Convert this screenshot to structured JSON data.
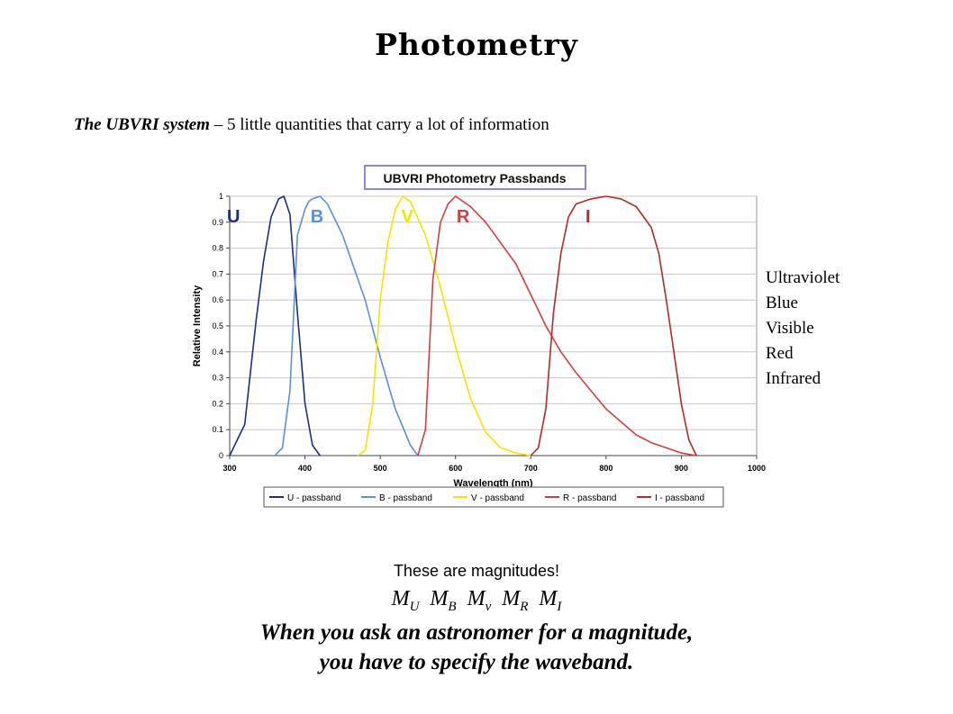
{
  "slide": {
    "title": "Photometry",
    "subtitle_bold": "The UBVRI system",
    "subtitle_rest": " – 5 little quantities that carry a lot of information",
    "bands": [
      "Ultraviolet",
      "Blue",
      "Visible",
      "Red",
      "Infrared"
    ],
    "note": "These are magnitudes!",
    "magnitudes": [
      {
        "base": "M",
        "sub": "U"
      },
      {
        "base": "M",
        "sub": "B"
      },
      {
        "base": "M",
        "sub": "v"
      },
      {
        "base": "M",
        "sub": "R"
      },
      {
        "base": "M",
        "sub": "I"
      }
    ],
    "conclusion_line1": "When you ask an astronomer for a magnitude,",
    "conclusion_line2": "you have to specify the waveband."
  },
  "chart_data": {
    "type": "line",
    "title": "UBVRI Photometry Passbands",
    "xlabel": "Wavelength (nm)",
    "ylabel": "Relative Intensity",
    "xlim": [
      300,
      1000
    ],
    "ylim": [
      0,
      1
    ],
    "xticks": [
      300,
      400,
      500,
      600,
      700,
      800,
      900,
      1000
    ],
    "yticks": [
      0,
      0.1,
      0.2,
      0.3,
      0.4,
      0.5,
      0.6,
      0.7,
      0.8,
      0.9,
      1
    ],
    "grid": true,
    "legend": "bottom",
    "series": [
      {
        "name": "U - passband",
        "label": "U",
        "color": "#1f2f80",
        "x": [
          300,
          320,
          335,
          345,
          355,
          365,
          372,
          380,
          390,
          400,
          410,
          420
        ],
        "y": [
          0.0,
          0.12,
          0.52,
          0.75,
          0.92,
          0.99,
          1.0,
          0.93,
          0.55,
          0.2,
          0.04,
          0.0
        ]
      },
      {
        "name": "B - passband",
        "label": "B",
        "color": "#5b8fe0",
        "x": [
          360,
          370,
          380,
          390,
          400,
          405,
          410,
          420,
          430,
          450,
          480,
          500,
          520,
          540,
          550
        ],
        "y": [
          0.0,
          0.03,
          0.25,
          0.85,
          0.95,
          0.98,
          0.99,
          1.0,
          0.97,
          0.85,
          0.6,
          0.38,
          0.18,
          0.04,
          0.0
        ]
      },
      {
        "name": "V - passband",
        "label": "V",
        "color": "#f2e600",
        "x": [
          470,
          480,
          490,
          500,
          510,
          520,
          530,
          540,
          560,
          580,
          600,
          620,
          640,
          660,
          680,
          700
        ],
        "y": [
          0.0,
          0.02,
          0.2,
          0.6,
          0.82,
          0.95,
          1.0,
          0.98,
          0.85,
          0.65,
          0.42,
          0.22,
          0.09,
          0.03,
          0.01,
          0.0
        ]
      },
      {
        "name": "R - passband",
        "label": "R",
        "color": "#d04040",
        "x": [
          550,
          560,
          570,
          580,
          590,
          600,
          620,
          640,
          660,
          680,
          700,
          720,
          740,
          760,
          780,
          800,
          820,
          840,
          860,
          880,
          900,
          910,
          920
        ],
        "y": [
          0.0,
          0.1,
          0.68,
          0.9,
          0.97,
          1.0,
          0.96,
          0.9,
          0.82,
          0.74,
          0.62,
          0.5,
          0.4,
          0.32,
          0.25,
          0.18,
          0.13,
          0.08,
          0.05,
          0.03,
          0.01,
          0.005,
          0.0
        ]
      },
      {
        "name": "I - passband",
        "label": "I",
        "color": "#b22a2a",
        "x": [
          700,
          710,
          720,
          730,
          740,
          750,
          760,
          780,
          800,
          820,
          840,
          860,
          870,
          880,
          890,
          900,
          910,
          920
        ],
        "y": [
          0.0,
          0.03,
          0.18,
          0.55,
          0.78,
          0.92,
          0.97,
          0.99,
          1.0,
          0.99,
          0.96,
          0.88,
          0.78,
          0.6,
          0.4,
          0.2,
          0.06,
          0.0
        ]
      }
    ]
  }
}
